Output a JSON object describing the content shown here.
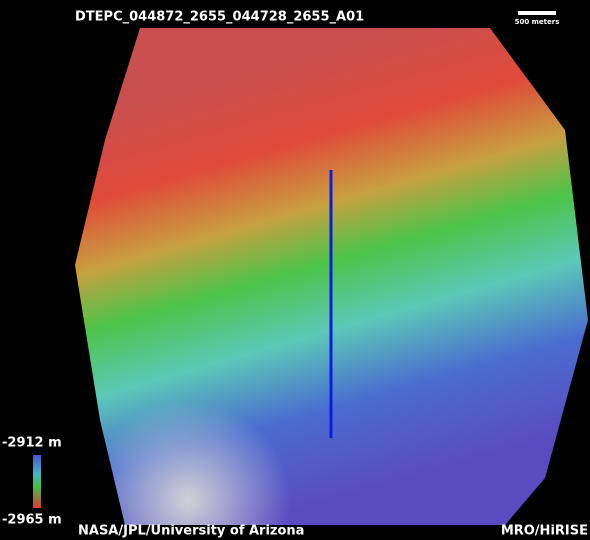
{
  "header": {
    "title": "DTEPC_044872_2655_044728_2655_A01",
    "scale_label": "500 meters"
  },
  "legend": {
    "top_label": "-2912 m",
    "bottom_label": "-2965 m"
  },
  "footer": {
    "credit": "NASA/JPL/University of Arizona",
    "source": "MRO/HiRISE"
  }
}
